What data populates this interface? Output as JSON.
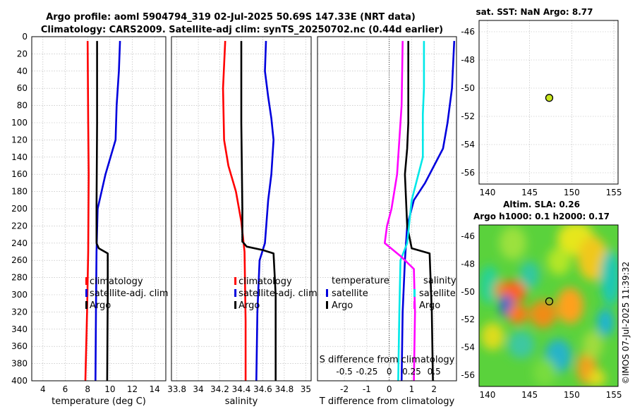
{
  "figure_title": {
    "line1": "Argo profile: aoml 5904794_319 02-Jul-2025 50.69S 147.33E (NRT data)",
    "line2": "Climatology: CARS2009. Satellite-adj clim: synTS_20250702.nc (0.44d earlier)"
  },
  "watermark": "©IMOS 07-Jul-2025 11:39:32",
  "colors": {
    "climatology": "#ff0000",
    "satellite": "#0000dd",
    "argo": "#000000",
    "salinity_satellite": "#00e8e8",
    "salinity_argo": "#ff00ff",
    "grid": "#b4b4b4",
    "marker_fill": "#c8e61e"
  },
  "chart_data": [
    {
      "type": "line",
      "name": "temperature-profile",
      "xlabel": "temperature (deg C)",
      "ylabel": "",
      "xlim": [
        3,
        15
      ],
      "ylim": [
        400,
        0
      ],
      "xticks": [
        4,
        6,
        8,
        10,
        12,
        14
      ],
      "yticks": [
        0,
        20,
        40,
        60,
        80,
        100,
        120,
        140,
        160,
        180,
        200,
        220,
        240,
        260,
        280,
        300,
        320,
        340,
        360,
        380,
        400
      ],
      "grid": true,
      "legend": [
        "climatology",
        "satellite-adj. clim",
        "Argo"
      ],
      "series": [
        {
          "name": "climatology",
          "color": "climatology",
          "points": [
            [
              8.0,
              5
            ],
            [
              8.05,
              100
            ],
            [
              8.1,
              160
            ],
            [
              8.05,
              250
            ],
            [
              7.95,
              320
            ],
            [
              7.8,
              400
            ]
          ]
        },
        {
          "name": "satellite-adj. clim",
          "color": "satellite",
          "points": [
            [
              10.9,
              5
            ],
            [
              10.8,
              40
            ],
            [
              10.6,
              80
            ],
            [
              10.5,
              120
            ],
            [
              9.6,
              160
            ],
            [
              8.9,
              200
            ],
            [
              8.8,
              250
            ],
            [
              8.75,
              320
            ],
            [
              8.7,
              400
            ]
          ]
        },
        {
          "name": "Argo",
          "color": "argo",
          "points": [
            [
              8.85,
              5
            ],
            [
              8.85,
              100
            ],
            [
              8.8,
              200
            ],
            [
              8.8,
              240
            ],
            [
              9.0,
              246
            ],
            [
              9.8,
              252
            ],
            [
              9.8,
              300
            ],
            [
              9.75,
              400
            ]
          ]
        }
      ]
    },
    {
      "type": "line",
      "name": "salinity-profile",
      "xlabel": "salinity",
      "xlim": [
        33.75,
        35.05
      ],
      "ylim": [
        400,
        0
      ],
      "xticks": [
        33.8,
        34,
        34.2,
        34.4,
        34.6,
        34.8,
        35
      ],
      "grid": true,
      "legend": [
        "climatology",
        "satellite-adj. clim",
        "Argo"
      ],
      "series": [
        {
          "name": "climatology",
          "color": "climatology",
          "points": [
            [
              34.25,
              5
            ],
            [
              34.23,
              60
            ],
            [
              34.24,
              120
            ],
            [
              34.28,
              150
            ],
            [
              34.35,
              180
            ],
            [
              34.4,
              215
            ],
            [
              34.43,
              250
            ],
            [
              34.44,
              330
            ],
            [
              34.44,
              400
            ]
          ]
        },
        {
          "name": "satellite-adj. clim",
          "color": "satellite",
          "points": [
            [
              34.63,
              5
            ],
            [
              34.62,
              40
            ],
            [
              34.65,
              70
            ],
            [
              34.68,
              95
            ],
            [
              34.7,
              120
            ],
            [
              34.68,
              160
            ],
            [
              34.65,
              190
            ],
            [
              34.62,
              240
            ],
            [
              34.57,
              260
            ],
            [
              34.55,
              320
            ],
            [
              34.54,
              400
            ]
          ]
        },
        {
          "name": "Argo",
          "color": "argo",
          "points": [
            [
              34.4,
              5
            ],
            [
              34.4,
              100
            ],
            [
              34.41,
              200
            ],
            [
              34.41,
              238
            ],
            [
              34.45,
              244
            ],
            [
              34.6,
              248
            ],
            [
              34.7,
              252
            ],
            [
              34.72,
              300
            ],
            [
              34.72,
              400
            ]
          ]
        }
      ]
    },
    {
      "type": "line",
      "name": "difference-profile",
      "xlabel": "T difference from climatology",
      "top_xlabel": "S difference from climatology",
      "xlim": [
        -3.2,
        3.0
      ],
      "ylim": [
        400,
        0
      ],
      "xticks": [
        -2,
        -1,
        0,
        1,
        2
      ],
      "top_ticks": [
        {
          "label": "-0.5",
          "x": -2
        },
        {
          "label": "-0.25",
          "x": -1
        },
        {
          "label": "0",
          "x": 0
        },
        {
          "label": "0.25",
          "x": 1
        },
        {
          "label": "0.5",
          "x": 2
        }
      ],
      "zero_line": true,
      "grid": true,
      "legend_left": {
        "heading": "temperature",
        "items": [
          "satellite",
          "Argo"
        ]
      },
      "legend_right": {
        "heading": "salinity",
        "items": [
          "satellite",
          "Argo"
        ]
      },
      "series": [
        {
          "name": "T satellite",
          "color": "satellite",
          "points": [
            [
              2.9,
              5
            ],
            [
              2.8,
              60
            ],
            [
              2.6,
              100
            ],
            [
              2.4,
              130
            ],
            [
              1.6,
              170
            ],
            [
              1.1,
              190
            ],
            [
              0.8,
              220
            ],
            [
              0.7,
              260
            ],
            [
              0.6,
              320
            ],
            [
              0.55,
              400
            ]
          ]
        },
        {
          "name": "T Argo",
          "color": "argo",
          "points": [
            [
              0.85,
              5
            ],
            [
              0.85,
              100
            ],
            [
              0.8,
              130
            ],
            [
              0.7,
              160
            ],
            [
              0.8,
              220
            ],
            [
              1.0,
              246
            ],
            [
              1.8,
              252
            ],
            [
              1.9,
              320
            ],
            [
              1.95,
              400
            ]
          ]
        },
        {
          "name": "S satellite",
          "color": "salinity_satellite",
          "points": [
            [
              1.55,
              5
            ],
            [
              1.55,
              60
            ],
            [
              1.5,
              90
            ],
            [
              1.5,
              140
            ],
            [
              1.0,
              190
            ],
            [
              0.8,
              240
            ],
            [
              0.5,
              260
            ],
            [
              0.45,
              320
            ],
            [
              0.4,
              400
            ]
          ]
        },
        {
          "name": "S Argo",
          "color": "salinity_argo",
          "points": [
            [
              0.6,
              5
            ],
            [
              0.55,
              80
            ],
            [
              0.45,
              120
            ],
            [
              0.35,
              160
            ],
            [
              0.1,
              200
            ],
            [
              -0.1,
              220
            ],
            [
              -0.2,
              240
            ],
            [
              0.5,
              255
            ],
            [
              1.1,
              270
            ],
            [
              1.15,
              320
            ],
            [
              1.1,
              400
            ]
          ]
        }
      ]
    },
    {
      "type": "scatter",
      "name": "sst-map",
      "title": "sat. SST: NaN Argo: 8.77",
      "xlim": [
        139,
        155.5
      ],
      "ylim": [
        -56.8,
        -45.2
      ],
      "xticks": [
        140,
        145,
        150,
        155
      ],
      "yticks": [
        -46,
        -48,
        -50,
        -52,
        -54,
        -56
      ],
      "points": [
        {
          "x": 147.33,
          "y": -50.69
        }
      ]
    },
    {
      "type": "heatmap",
      "name": "sla-map",
      "title_line1": "Altim. SLA: 0.26",
      "title_line2": "Argo h1000: 0.1 h2000: 0.17",
      "xlim": [
        139,
        155.5
      ],
      "ylim": [
        -56.8,
        -45.2
      ],
      "xticks": [
        140,
        145,
        150,
        155
      ],
      "yticks": [
        -46,
        -48,
        -50,
        -52,
        -54,
        -56
      ],
      "points": [
        {
          "x": 147.33,
          "y": -50.69
        }
      ]
    }
  ]
}
